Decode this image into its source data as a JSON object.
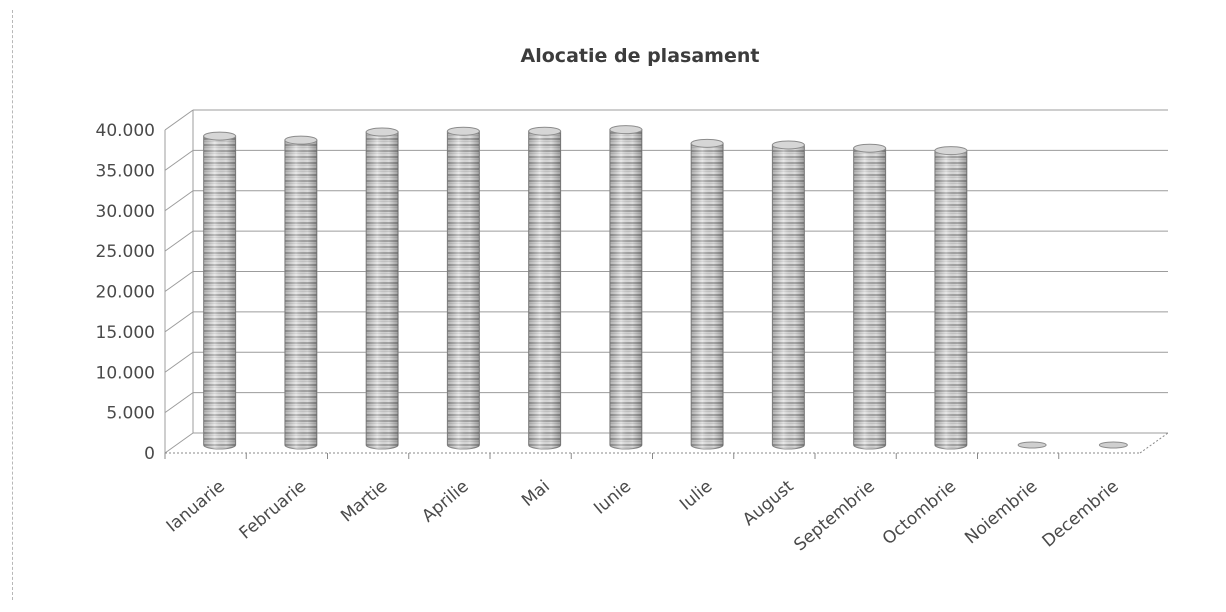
{
  "chart_data": {
    "type": "bar",
    "title": "Alocatie de plasament",
    "xlabel": "",
    "ylabel": "",
    "categories": [
      "Ianuarie",
      "Februarie",
      "Martie",
      "Aprilie",
      "Mai",
      "Iunie",
      "Iulie",
      "August",
      "Septembrie",
      "Octombrie",
      "Noiembrie",
      "Decembrie"
    ],
    "values": [
      39000,
      38500,
      39500,
      39600,
      39600,
      39800,
      38100,
      37900,
      37500,
      37200,
      0,
      0
    ],
    "ylim": [
      0,
      40000
    ],
    "yticks": [
      0,
      5000,
      10000,
      15000,
      20000,
      25000,
      30000,
      35000,
      40000
    ],
    "ytick_labels": [
      "0",
      "5.000",
      "10.000",
      "15.000",
      "20.000",
      "25.000",
      "30.000",
      "35.000",
      "40.000"
    ],
    "grid": true,
    "legend": "none",
    "bar_shape": "cylinder",
    "colors": {
      "bar_fill": "#dcdcdc",
      "bar_stripe": "#9a9a9a",
      "grid": "#9c9c9c",
      "text": "#4a4a4a"
    }
  }
}
